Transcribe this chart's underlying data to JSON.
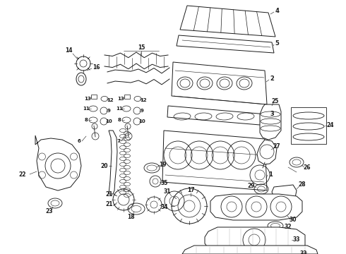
{
  "bg_color": "#ffffff",
  "line_color": "#1a1a1a",
  "figsize": [
    4.9,
    3.6
  ],
  "dpi": 100,
  "lw": 0.7
}
